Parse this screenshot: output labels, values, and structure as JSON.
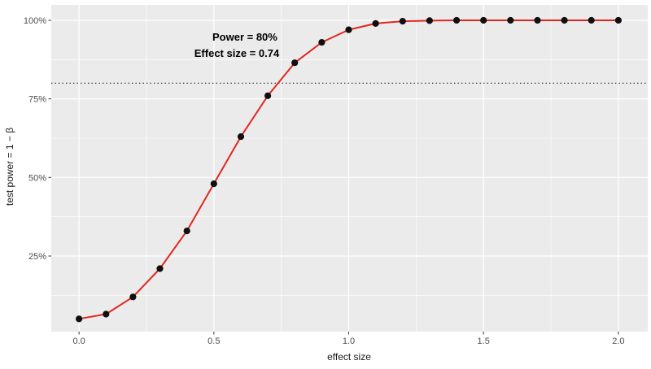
{
  "figure": {
    "xlabel": "effect size",
    "ylabel": "test power = 1 − β"
  },
  "chart_data": {
    "type": "line",
    "title": "",
    "xlabel": "effect size",
    "ylabel": "test power = 1 − β",
    "x": [
      0.0,
      0.1,
      0.2,
      0.3,
      0.4,
      0.5,
      0.6,
      0.7,
      0.8,
      0.9,
      1.0,
      1.1,
      1.2,
      1.3,
      1.4,
      1.5,
      1.6,
      1.7,
      1.8,
      1.9,
      2.0
    ],
    "series": [
      {
        "name": "test power",
        "values": [
          5,
          6.5,
          12,
          21,
          33,
          48,
          63,
          76,
          86.5,
          93,
          97,
          99,
          99.7,
          99.9,
          100,
          100,
          100,
          100,
          100,
          100,
          100
        ]
      }
    ],
    "x_ticks": {
      "values": [
        0,
        0.5,
        1.0,
        1.5,
        2.0
      ],
      "labels": [
        "0.0",
        "0.5",
        "1.0",
        "1.5",
        "2.0"
      ]
    },
    "y_ticks": {
      "values": [
        25,
        50,
        75,
        100
      ],
      "labels": [
        "25%",
        "50%",
        "75%",
        "100%"
      ]
    },
    "x_minor_ticks": [
      0.25,
      0.75,
      1.25,
      1.75
    ],
    "y_minor_ticks": [
      12.5,
      37.5,
      62.5,
      87.5
    ],
    "xlim": [
      -0.103,
      2.109
    ],
    "ylim": [
      0.95,
      104.91
    ],
    "grid": "major+minor",
    "legend_position": "none",
    "reference_line": {
      "y": 80,
      "style": "dotted"
    },
    "annotations": [
      {
        "text": "Power = 80%",
        "x": 0.615,
        "y": 93.5
      },
      {
        "text": "Effect size = 0.74",
        "x": 0.585,
        "y": 88.4
      }
    ],
    "colors": {
      "line": "#e02720",
      "point": "#0f0f0f",
      "panel_background": "#ebebeb",
      "grid": "#ffffff",
      "tick_mark": "#333333",
      "tick_text": "#4d4d4d",
      "axis_title": "#1a1a1a",
      "reference_line": "#1a1a1a",
      "annotation_text": "#000000"
    }
  }
}
